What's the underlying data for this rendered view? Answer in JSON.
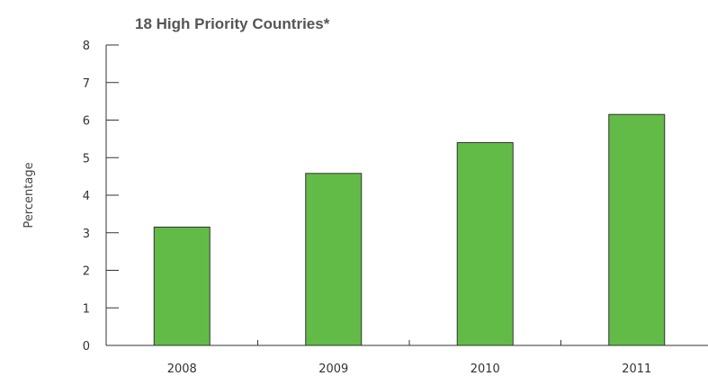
{
  "chart_data": {
    "type": "bar",
    "title": "18 High Priority Countries*",
    "xlabel": "",
    "ylabel": "Percentage",
    "categories": [
      "2008",
      "2009",
      "2010",
      "2011"
    ],
    "values": [
      3.15,
      4.58,
      5.4,
      6.15
    ],
    "ylim": [
      0,
      8
    ],
    "yticks": [
      "0",
      "1",
      "2",
      "3",
      "4",
      "5",
      "6",
      "7",
      "8"
    ],
    "bar_color": "#62bb46",
    "bar_outline": "#333333",
    "grid": false,
    "legend": "none"
  }
}
